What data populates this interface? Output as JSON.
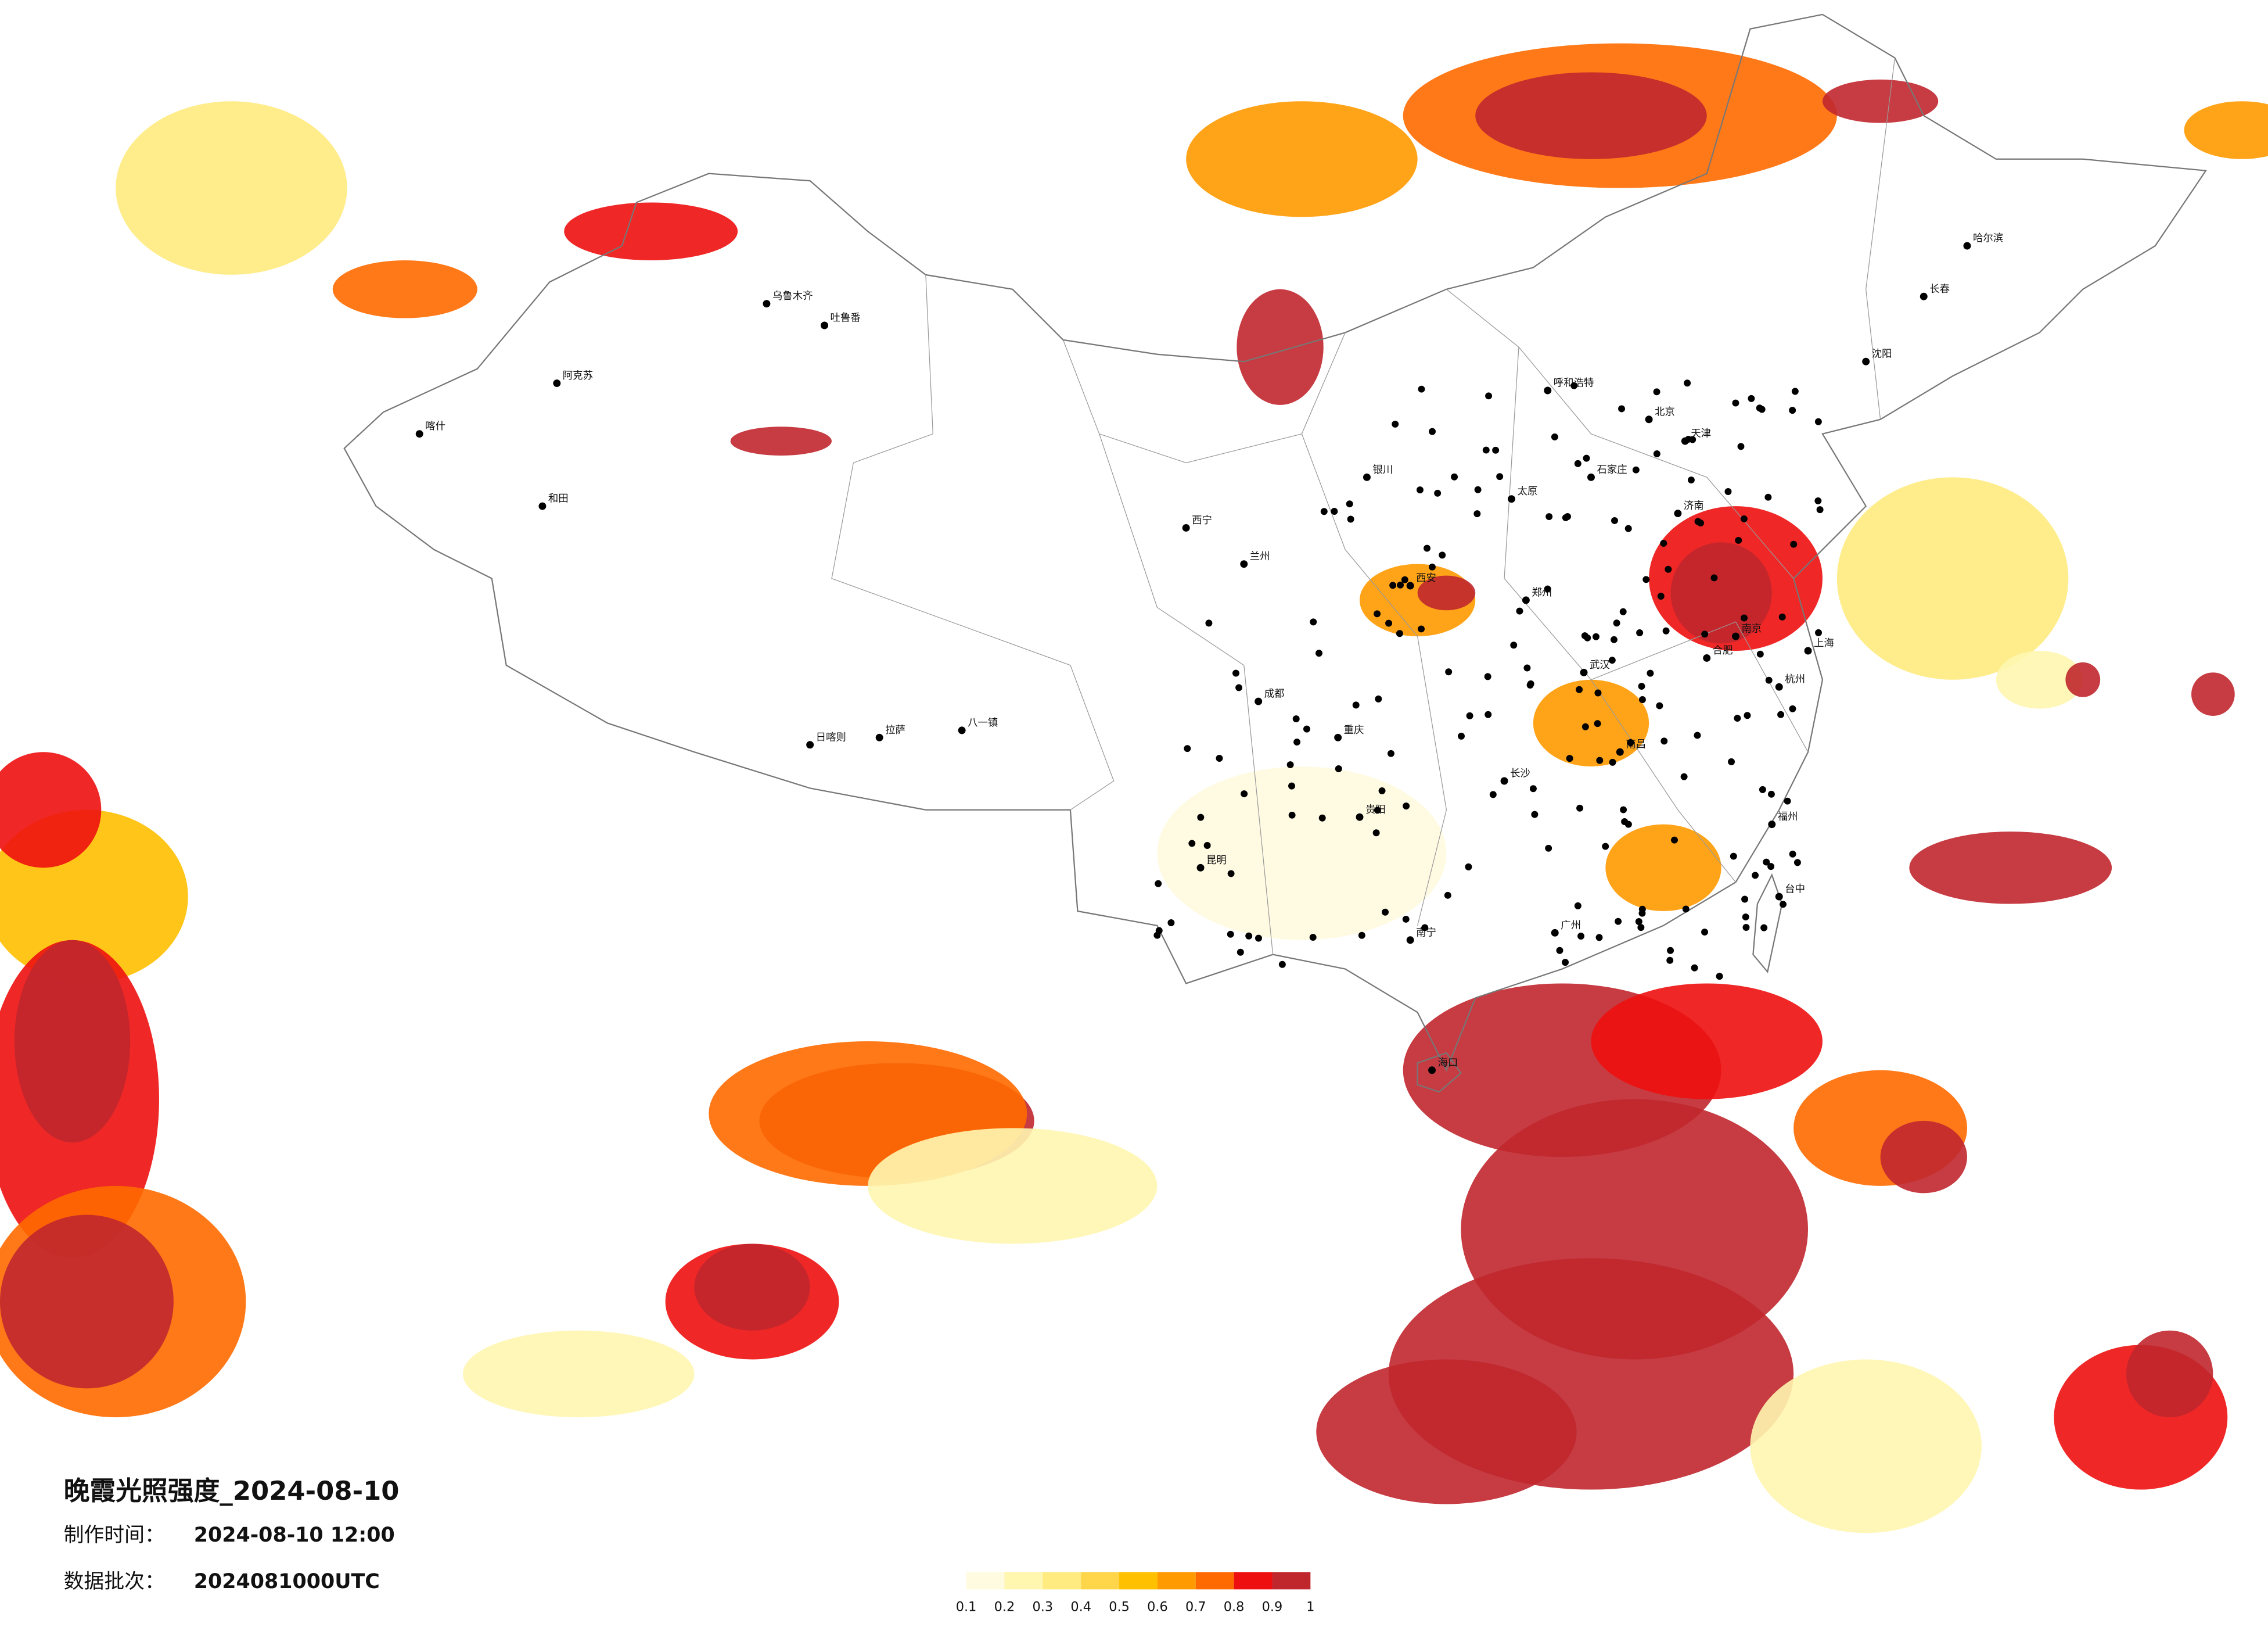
{
  "title": "晚霞光照强度_2024-08-10",
  "production_time": {
    "label": "制作时间：",
    "value": "2024-08-10 12:00"
  },
  "data_batch": {
    "label": "数据批次：",
    "value": "2024081000UTC"
  },
  "legend": {
    "ticks": [
      "0.1",
      "0.2",
      "0.3",
      "0.4",
      "0.5",
      "0.6",
      "0.7",
      "0.8",
      "0.9",
      "1"
    ],
    "colors": [
      "#fffbe0",
      "#fff6b0",
      "#ffeb80",
      "#ffd54a",
      "#ffc000",
      "#ff9a00",
      "#ff6a00",
      "#ee1010",
      "#c0272d"
    ]
  },
  "cities": [
    "乌鲁木齐",
    "喀什",
    "和田",
    "阿克苏",
    "吐鲁番",
    "拉萨",
    "日喀则",
    "八一镇",
    "西宁",
    "兰州",
    "银川",
    "成都",
    "重庆",
    "昆明",
    "贵阳",
    "南宁",
    "广州",
    "长沙",
    "武汉",
    "郑州",
    "西安",
    "太原",
    "石家庄",
    "北京",
    "天津",
    "济南",
    "南京",
    "上海",
    "杭州",
    "福州",
    "南昌",
    "合肥",
    "呼和浩特",
    "哈尔滨",
    "长春",
    "沈阳",
    "海口",
    "台中"
  ]
}
